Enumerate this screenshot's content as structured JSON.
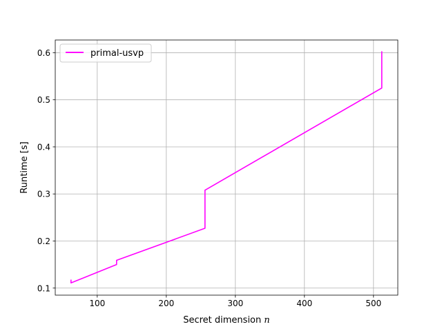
{
  "chart_data": {
    "type": "line",
    "title": "",
    "xlabel": "Secret dimension",
    "xlabel_var": "n",
    "ylabel": "Runtime [s]",
    "xlim": [
      39.2,
      535.2
    ],
    "ylim": [
      0.085,
      0.627
    ],
    "xticks": [
      100,
      200,
      300,
      400,
      500
    ],
    "yticks": [
      0.1,
      0.2,
      0.3,
      0.4,
      0.5,
      0.6
    ],
    "xtick_labels": [
      "100",
      "200",
      "300",
      "400",
      "500"
    ],
    "ytick_labels": [
      "0.1",
      "0.2",
      "0.3",
      "0.4",
      "0.5",
      "0.6"
    ],
    "grid": true,
    "legend": {
      "placement": "top-left",
      "entries": [
        "primal-usvp"
      ]
    },
    "series": [
      {
        "name": "primal-usvp",
        "color": "#ff00ff",
        "x": [
          62,
          62,
          128,
          128,
          256,
          256,
          512,
          512
        ],
        "y": [
          0.118,
          0.111,
          0.15,
          0.159,
          0.227,
          0.308,
          0.525,
          0.603
        ]
      }
    ]
  }
}
